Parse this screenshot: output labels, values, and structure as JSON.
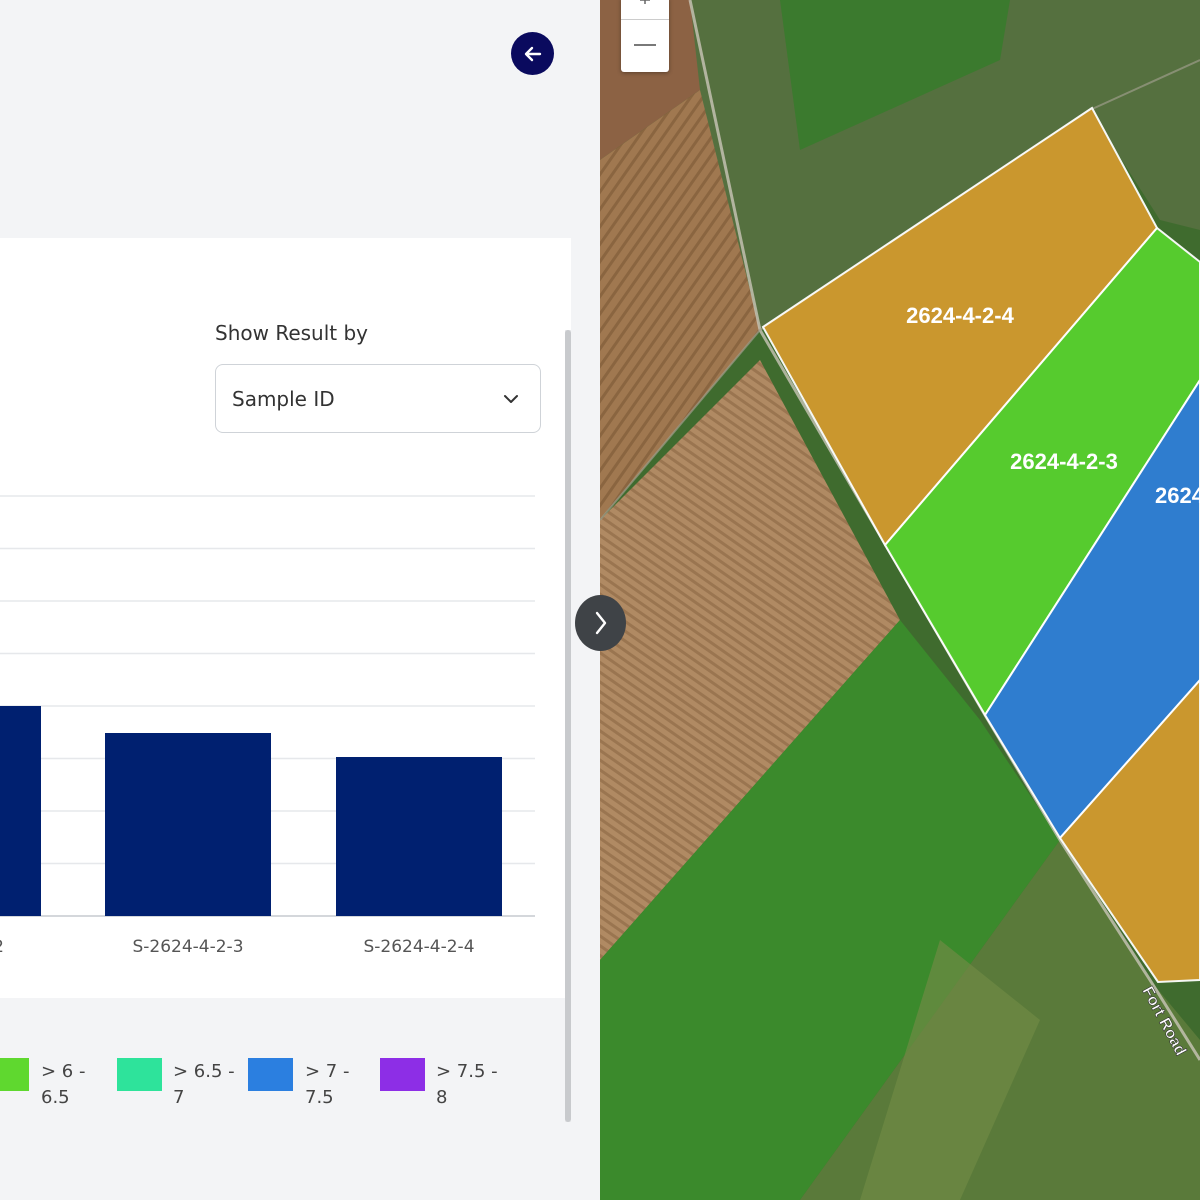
{
  "controls": {
    "show_result_label": "Show Result by",
    "select_value": "Sample ID"
  },
  "chart_data": {
    "type": "bar",
    "categories": [
      "2",
      "S-2624-4-2-3",
      "S-2624-4-2-4"
    ],
    "values": [
      7.0,
      6.1,
      5.3
    ],
    "title": "",
    "xlabel": "",
    "ylabel": "",
    "ylim": [
      0,
      14
    ],
    "bar_color": "#002070",
    "grid": true,
    "legend": "bottom"
  },
  "legend": {
    "items": [
      {
        "line1": "> 6 -",
        "line2": "6.5",
        "color": "#5fd82f"
      },
      {
        "line1": "> 6.5 -",
        "line2": "7",
        "color": "#2ee39b"
      },
      {
        "line1": "> 7 -",
        "line2": "7.5",
        "color": "#2b7fe0"
      },
      {
        "line1": "> 7.5 -",
        "line2": "8",
        "color": "#8d2ee6"
      }
    ]
  },
  "map": {
    "fields": [
      {
        "label": "2624-4-2-4",
        "color": "#d29a2e"
      },
      {
        "label": "2624-4-2-3",
        "color": "#58d12e"
      },
      {
        "label": "2624",
        "color": "#2f7fd8"
      },
      {
        "label": "",
        "color": "#d29a2e"
      }
    ],
    "road_label": "Fort Road"
  },
  "icons": {
    "back": "arrow-left-icon",
    "dropdown": "chevron-down-icon",
    "toggle": "chevron-right-icon",
    "zoom_in": "plus-icon",
    "zoom_out": "minus-icon"
  }
}
